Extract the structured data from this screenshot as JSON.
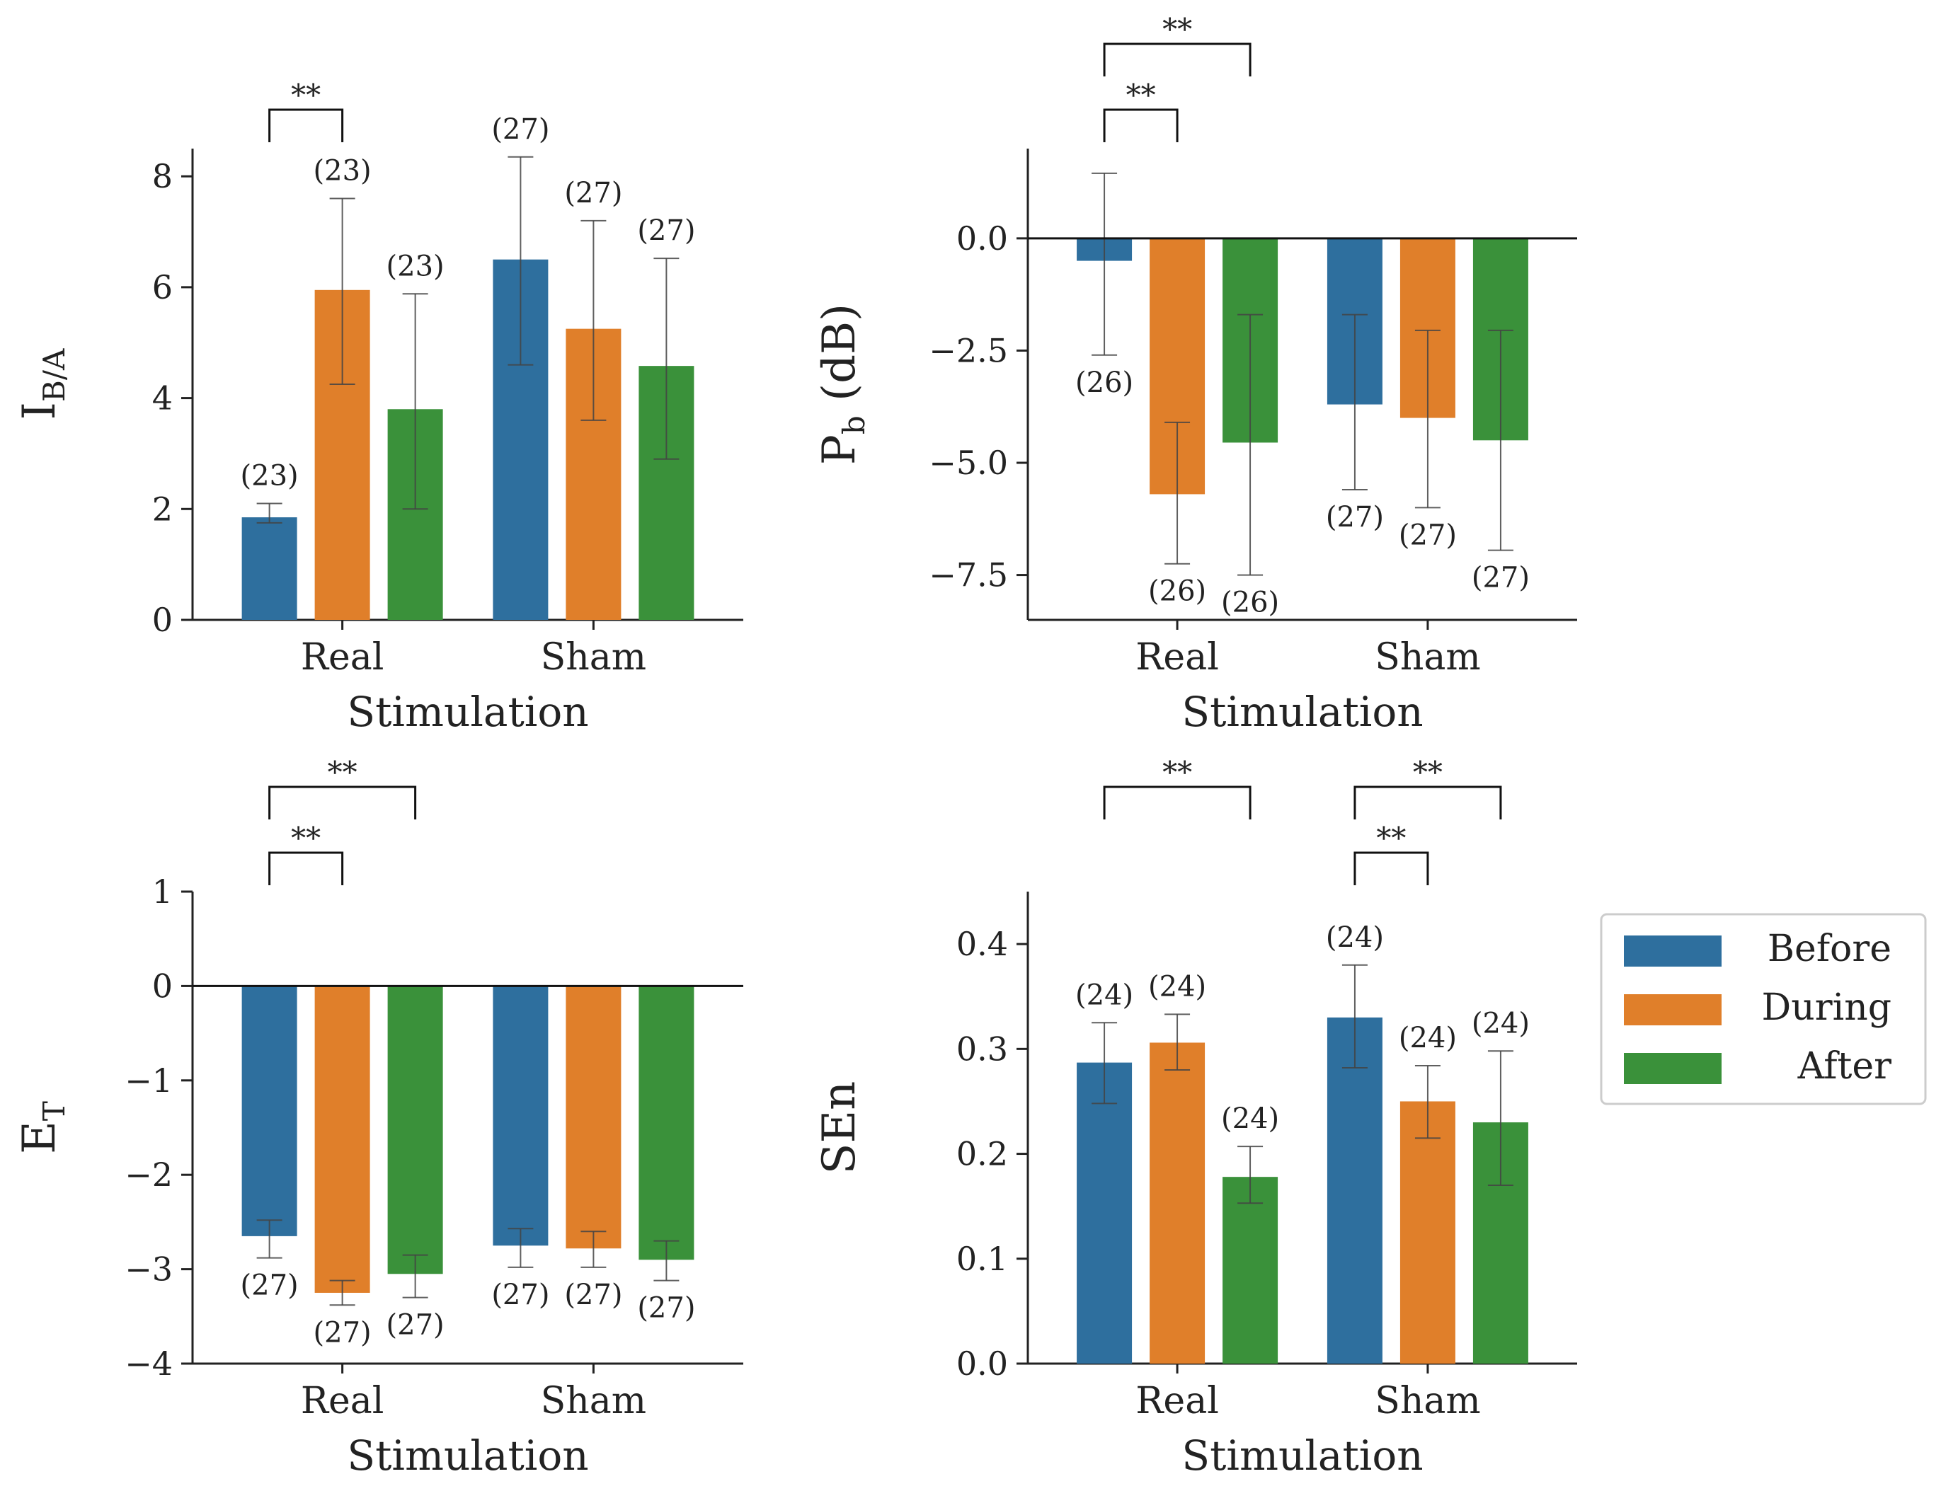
{
  "legend": {
    "placement": "right",
    "entries": [
      {
        "name": "Before",
        "color": "#2e6f9e"
      },
      {
        "name": "During",
        "color": "#e07f2a"
      },
      {
        "name": "After",
        "color": "#3a913a"
      }
    ]
  },
  "significance_marker": "**",
  "chart_data": [
    {
      "type": "bar",
      "title": "",
      "xlabel": "Stimulation",
      "ylabel": "I",
      "ylabel_sub": "B/A",
      "categories": [
        "Real",
        "Sham"
      ],
      "ylim": [
        0,
        8.5
      ],
      "yticks": [
        0,
        2,
        4,
        6,
        8
      ],
      "ytick_labels": [
        "0",
        "2",
        "4",
        "6",
        "8"
      ],
      "zero_line": false,
      "series": [
        {
          "name": "Before",
          "values": [
            1.85,
            6.5
          ],
          "err_low": [
            1.75,
            4.6
          ],
          "err_high": [
            2.1,
            8.35
          ],
          "n": [
            "(23)",
            "(27)"
          ]
        },
        {
          "name": "During",
          "values": [
            5.95,
            5.25
          ],
          "err_low": [
            4.25,
            3.6
          ],
          "err_high": [
            7.6,
            7.2
          ],
          "n": [
            "(23)",
            "(27)"
          ]
        },
        {
          "name": "After",
          "values": [
            3.8,
            4.58
          ],
          "err_low": [
            2.0,
            2.9
          ],
          "err_high": [
            5.88,
            6.52
          ],
          "n": [
            "(23)",
            "(27)"
          ]
        }
      ],
      "significance": [
        {
          "category": 0,
          "from": 0,
          "to": 1,
          "level": 0,
          "label": "**"
        }
      ]
    },
    {
      "type": "bar",
      "title": "",
      "xlabel": "Stimulation",
      "ylabel": "P",
      "ylabel_sub": "b",
      "ylabel_suffix": " (dB)",
      "categories": [
        "Real",
        "Sham"
      ],
      "ylim": [
        -8.5,
        2.0
      ],
      "yticks": [
        0.0,
        -2.5,
        -5.0,
        -7.5
      ],
      "ytick_labels": [
        "0.0",
        "−2.5",
        "−5.0",
        "−7.5"
      ],
      "zero_line": true,
      "series": [
        {
          "name": "Before",
          "values": [
            -0.5,
            -3.7
          ],
          "err_low": [
            -2.6,
            -5.6
          ],
          "err_high": [
            1.45,
            -1.7
          ],
          "n": [
            "(26)",
            "(27)"
          ]
        },
        {
          "name": "During",
          "values": [
            -5.7,
            -4.0
          ],
          "err_low": [
            -7.25,
            -6.0
          ],
          "err_high": [
            -4.1,
            -2.05
          ],
          "n": [
            "(26)",
            "(27)"
          ]
        },
        {
          "name": "After",
          "values": [
            -4.55,
            -4.5
          ],
          "err_low": [
            -7.5,
            -6.95
          ],
          "err_high": [
            -1.7,
            -2.05
          ],
          "n": [
            "(26)",
            "(27)"
          ]
        }
      ],
      "significance": [
        {
          "category": 0,
          "from": 0,
          "to": 1,
          "level": 0,
          "label": "**"
        },
        {
          "category": 0,
          "from": 0,
          "to": 2,
          "level": 1,
          "label": "**"
        }
      ]
    },
    {
      "type": "bar",
      "title": "",
      "xlabel": "Stimulation",
      "ylabel": "E",
      "ylabel_sub": "T",
      "categories": [
        "Real",
        "Sham"
      ],
      "ylim": [
        -4,
        1
      ],
      "yticks": [
        1,
        0,
        -1,
        -2,
        -3,
        -4
      ],
      "ytick_labels": [
        "1",
        "0",
        "−1",
        "−2",
        "−3",
        "−4"
      ],
      "zero_line": true,
      "series": [
        {
          "name": "Before",
          "values": [
            -2.65,
            -2.75
          ],
          "err_low": [
            -2.88,
            -2.98
          ],
          "err_high": [
            -2.48,
            -2.57
          ],
          "n": [
            "(27)",
            "(27)"
          ]
        },
        {
          "name": "During",
          "values": [
            -3.25,
            -2.78
          ],
          "err_low": [
            -3.38,
            -2.98
          ],
          "err_high": [
            -3.12,
            -2.6
          ],
          "n": [
            "(27)",
            "(27)"
          ]
        },
        {
          "name": "After",
          "values": [
            -3.05,
            -2.9
          ],
          "err_low": [
            -3.3,
            -3.12
          ],
          "err_high": [
            -2.85,
            -2.7
          ],
          "n": [
            "(27)",
            "(27)"
          ]
        }
      ],
      "significance": [
        {
          "category": 0,
          "from": 0,
          "to": 1,
          "level": 0,
          "label": "**"
        },
        {
          "category": 0,
          "from": 0,
          "to": 2,
          "level": 1,
          "label": "**"
        }
      ]
    },
    {
      "type": "bar",
      "title": "",
      "xlabel": "Stimulation",
      "ylabel": "SEn",
      "ylabel_sub": "",
      "categories": [
        "Real",
        "Sham"
      ],
      "ylim": [
        0,
        0.45
      ],
      "yticks": [
        0.0,
        0.1,
        0.2,
        0.3,
        0.4
      ],
      "ytick_labels": [
        "0.0",
        "0.1",
        "0.2",
        "0.3",
        "0.4"
      ],
      "zero_line": false,
      "series": [
        {
          "name": "Before",
          "values": [
            0.287,
            0.33
          ],
          "err_low": [
            0.248,
            0.282
          ],
          "err_high": [
            0.325,
            0.38
          ],
          "n": [
            "(24)",
            "(24)"
          ]
        },
        {
          "name": "During",
          "values": [
            0.306,
            0.25
          ],
          "err_low": [
            0.28,
            0.215
          ],
          "err_high": [
            0.333,
            0.284
          ],
          "n": [
            "(24)",
            "(24)"
          ]
        },
        {
          "name": "After",
          "values": [
            0.178,
            0.23
          ],
          "err_low": [
            0.153,
            0.17
          ],
          "err_high": [
            0.207,
            0.298
          ],
          "n": [
            "(24)",
            "(24)"
          ]
        }
      ],
      "significance": [
        {
          "category": 0,
          "from": 0,
          "to": 2,
          "level": 1,
          "label": "**"
        },
        {
          "category": 1,
          "from": 0,
          "to": 1,
          "level": 0,
          "label": "**"
        },
        {
          "category": 1,
          "from": 0,
          "to": 2,
          "level": 1,
          "label": "**"
        }
      ]
    }
  ]
}
